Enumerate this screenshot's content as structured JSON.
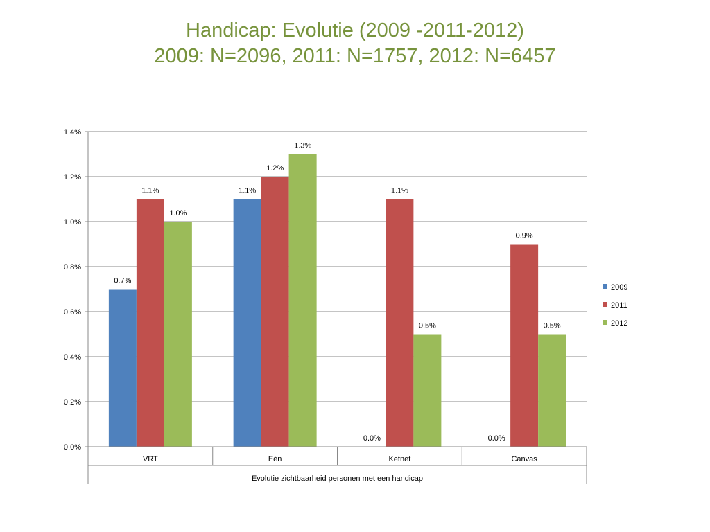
{
  "title": "Handicap: Evolutie (2009 -2011-2012)",
  "subtitle": "2009: N=2096, 2011: N=1757, 2012: N=6457",
  "chart_data": {
    "type": "bar",
    "categories": [
      "VRT",
      "Eén",
      "Ketnet",
      "Canvas"
    ],
    "group_label": "Evolutie zichtbaarheid personen met een handicap",
    "series": [
      {
        "name": "2009",
        "color": "#4F81BD",
        "values": [
          0.7,
          1.1,
          0.0,
          0.0
        ],
        "labels": [
          "0.7%",
          "1.1%",
          "0.0%",
          "0.0%"
        ]
      },
      {
        "name": "2011",
        "color": "#C0504D",
        "values": [
          1.1,
          1.2,
          1.1,
          0.9
        ],
        "labels": [
          "1.1%",
          "1.2%",
          "1.1%",
          "0.9%"
        ]
      },
      {
        "name": "2012",
        "color": "#9BBB59",
        "values": [
          1.0,
          1.3,
          0.5,
          0.5
        ],
        "labels": [
          "1.0%",
          "1.3%",
          "0.5%",
          "0.5%"
        ]
      }
    ],
    "ylim": [
      0,
      1.4
    ],
    "yticks": [
      "0.0%",
      "0.2%",
      "0.4%",
      "0.6%",
      "0.8%",
      "1.0%",
      "1.2%",
      "1.4%"
    ],
    "grid": true,
    "legend": "right"
  }
}
